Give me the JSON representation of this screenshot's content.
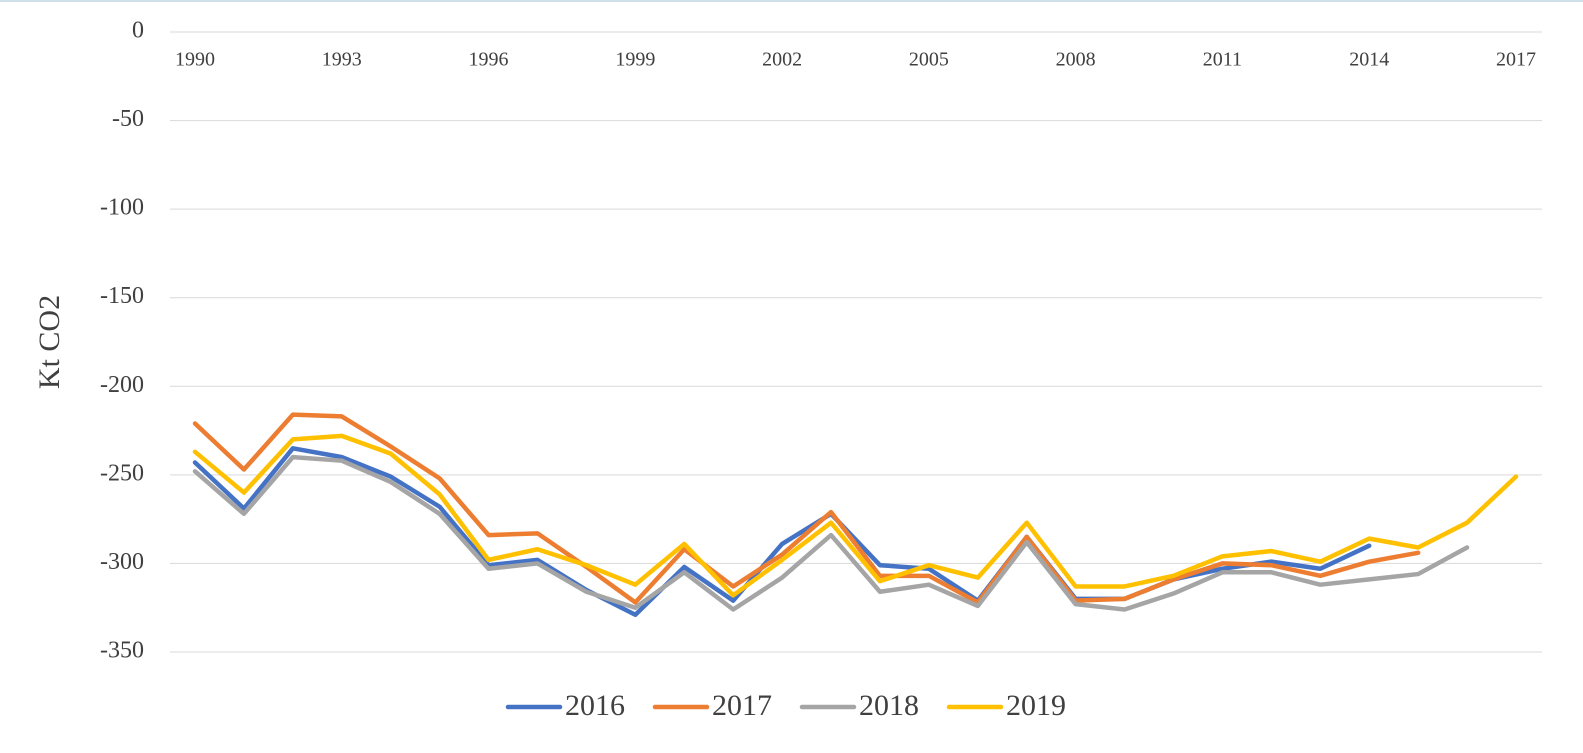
{
  "chart_data": {
    "type": "line",
    "y_label": "Kt CO2",
    "categories": [
      "1990",
      null,
      null,
      "1993",
      null,
      null,
      "1996",
      null,
      null,
      "1999",
      null,
      null,
      "2002",
      null,
      null,
      "2005",
      null,
      null,
      "2008",
      null,
      null,
      "2011",
      null,
      null,
      "2014",
      null,
      null,
      "2017"
    ],
    "series": [
      {
        "name": "2016",
        "color": "#4472c4",
        "values": [
          -243,
          -269,
          -235,
          -240,
          -251,
          -268,
          -301,
          -298,
          -315,
          -329,
          -302,
          -321,
          -289,
          -272,
          -301,
          -303,
          -321,
          -285,
          -320,
          -320,
          -309,
          -303,
          -299,
          -303,
          -290,
          null,
          null,
          null
        ]
      },
      {
        "name": "2017",
        "color": "#ed7d31",
        "values": [
          -221,
          -247,
          -216,
          -217,
          -234,
          -252,
          -284,
          -283,
          -302,
          -322,
          -292,
          -313,
          -295,
          -271,
          -307,
          -307,
          -322,
          -285,
          -321,
          -320,
          -309,
          -300,
          -301,
          -307,
          -299,
          -294,
          null,
          null
        ]
      },
      {
        "name": "2018",
        "color": "#a5a5a5",
        "values": [
          -248,
          -272,
          -240,
          -242,
          -254,
          -272,
          -303,
          -300,
          -316,
          -325,
          -305,
          -326,
          -308,
          -284,
          -316,
          -312,
          -324,
          -288,
          -323,
          -326,
          -317,
          -305,
          -305,
          -312,
          -309,
          -306,
          -291,
          null
        ]
      },
      {
        "name": "2019",
        "color": "#ffc000",
        "values": [
          -237,
          -260,
          -230,
          -228,
          -238,
          -261,
          -298,
          -292,
          -301,
          -312,
          -289,
          -318,
          -298,
          -277,
          -310,
          -301,
          -308,
          -277,
          -313,
          -313,
          -307,
          -296,
          -293,
          -299,
          -286,
          -291,
          -277,
          -251
        ]
      }
    ],
    "ylim": [
      -350,
      0
    ],
    "yticks": [
      0,
      -50,
      -100,
      -150,
      -200,
      -250,
      -300,
      -350
    ],
    "grid": true,
    "legend": "bottom"
  }
}
